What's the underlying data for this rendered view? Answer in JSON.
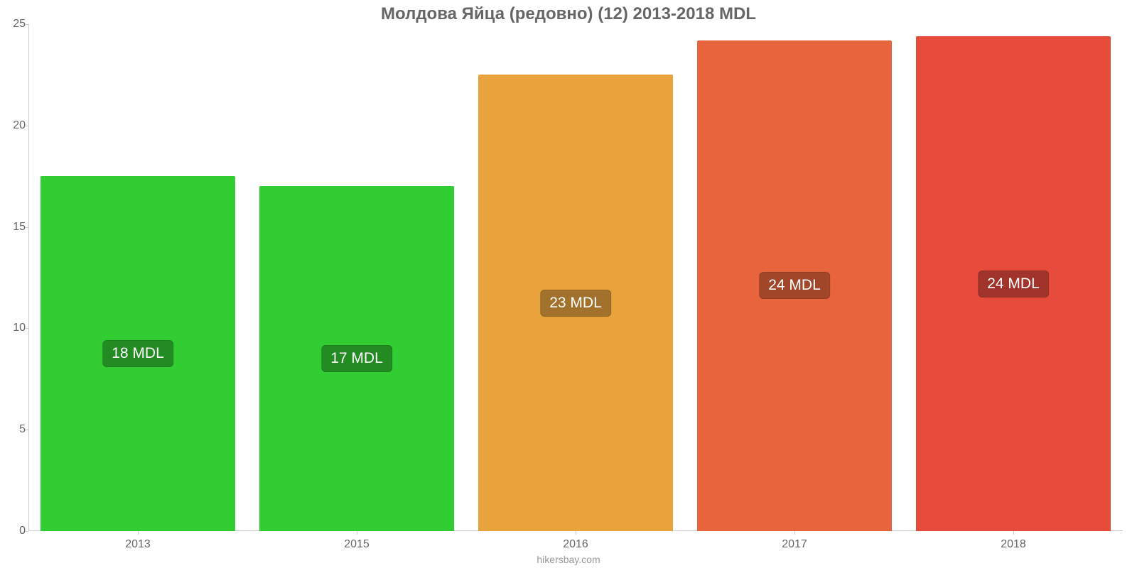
{
  "chart": {
    "type": "bar",
    "title": "Молдова Яйца (редовно) (12) 2013-2018 MDL",
    "title_color": "#666666",
    "title_fontsize": 24,
    "background_color": "#ffffff",
    "ylim_min": 0,
    "ylim_max": 25,
    "yticks": [
      0,
      5,
      10,
      15,
      20,
      25
    ],
    "tick_label_color": "#666666",
    "tick_label_fontsize": 16,
    "axis_line_color": "#cccccc",
    "bar_width_ratio": 0.89,
    "bars": [
      {
        "category": "2013",
        "value": 17.5,
        "label": "18 MDL",
        "bar_color": "#32cd32",
        "label_bg": "#228b22",
        "label_text_color": "#ffffff"
      },
      {
        "category": "2015",
        "value": 17.0,
        "label": "17 MDL",
        "bar_color": "#32cd32",
        "label_bg": "#228b22",
        "label_text_color": "#ffffff"
      },
      {
        "category": "2016",
        "value": 22.5,
        "label": "23 MDL",
        "bar_color": "#e8a33d",
        "label_bg": "#a2712b",
        "label_text_color": "#ffffff"
      },
      {
        "category": "2017",
        "value": 24.2,
        "label": "24 MDL",
        "bar_color": "#e8643c",
        "label_bg": "#a2462a",
        "label_text_color": "#ffffff"
      },
      {
        "category": "2018",
        "value": 24.4,
        "label": "24 MDL",
        "bar_color": "#e74b3c",
        "label_bg": "#a1342a",
        "label_text_color": "#ffffff"
      }
    ],
    "bar_label_fontsize": 21
  },
  "attribution": {
    "text": "hikersbay.com",
    "color": "#999999",
    "fontsize": 14
  }
}
